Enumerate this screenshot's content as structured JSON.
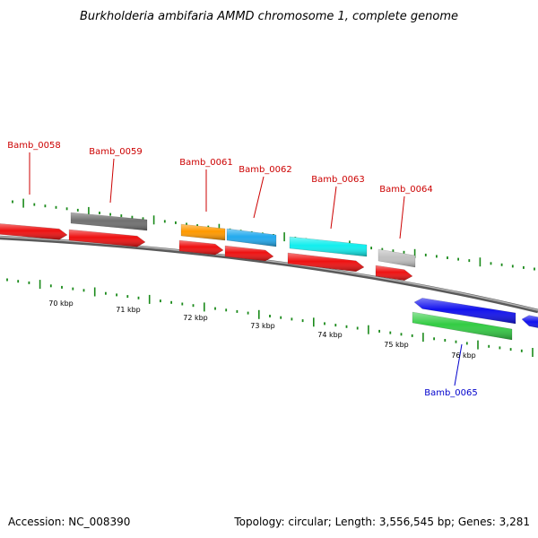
{
  "title": "Burkholderia ambifaria AMMD chromosome 1, complete genome",
  "footer": {
    "accession": "Accession: NC_008390",
    "summary": "Topology: circular; Length: 3,556,545 bp; Genes: 3,281"
  },
  "colors": {
    "forward_label": "#cc0000",
    "reverse_label": "#0000cc",
    "backbone": "#8a8a8a",
    "tick": "#1a8a1a"
  },
  "genes": [
    {
      "name": "Bamb_0058",
      "strand": "forward",
      "label_color": "#cc0000"
    },
    {
      "name": "Bamb_0059",
      "strand": "forward",
      "label_color": "#cc0000"
    },
    {
      "name": "Bamb_0061",
      "strand": "forward",
      "label_color": "#cc0000"
    },
    {
      "name": "Bamb_0062",
      "strand": "forward",
      "label_color": "#cc0000"
    },
    {
      "name": "Bamb_0063",
      "strand": "forward",
      "label_color": "#cc0000"
    },
    {
      "name": "Bamb_0064",
      "strand": "forward",
      "label_color": "#cc0000"
    },
    {
      "name": "Bamb_0065",
      "strand": "reverse",
      "label_color": "#0000cc"
    }
  ],
  "features": [
    {
      "gene": "Bamb_0058",
      "color": "#ee1111",
      "track": "forward-lower"
    },
    {
      "gene": "Bamb_0059",
      "color": "#707070",
      "track": "forward-upper"
    },
    {
      "gene": "Bamb_0059",
      "color": "#ee1111",
      "track": "forward-lower"
    },
    {
      "gene": "Bamb_0061",
      "color": "#ff9900",
      "track": "forward-upper"
    },
    {
      "gene": "Bamb_0061",
      "color": "#ee1111",
      "track": "forward-lower"
    },
    {
      "gene": "Bamb_0062",
      "color": "#22aaee",
      "track": "forward-upper"
    },
    {
      "gene": "Bamb_0062",
      "color": "#ee1111",
      "track": "forward-lower"
    },
    {
      "gene": "Bamb_0063",
      "color": "#11eeee",
      "track": "forward-upper"
    },
    {
      "gene": "Bamb_0063",
      "color": "#ee1111",
      "track": "forward-lower"
    },
    {
      "gene": "Bamb_0064",
      "color": "#c0c0c0",
      "track": "forward-upper"
    },
    {
      "gene": "Bamb_0064",
      "color": "#ee1111",
      "track": "forward-lower"
    },
    {
      "gene": "Bamb_0065",
      "color": "#1111ee",
      "track": "reverse-upper"
    },
    {
      "gene": "Bamb_0065",
      "color": "#33cc44",
      "track": "reverse-lower"
    },
    {
      "gene": "",
      "color": "#1111ee",
      "track": "reverse-upper"
    }
  ],
  "scale_labels": [
    "70 kbp",
    "71 kbp",
    "72 kbp",
    "73 kbp",
    "74 kbp",
    "75 kbp",
    "76 kbp"
  ]
}
